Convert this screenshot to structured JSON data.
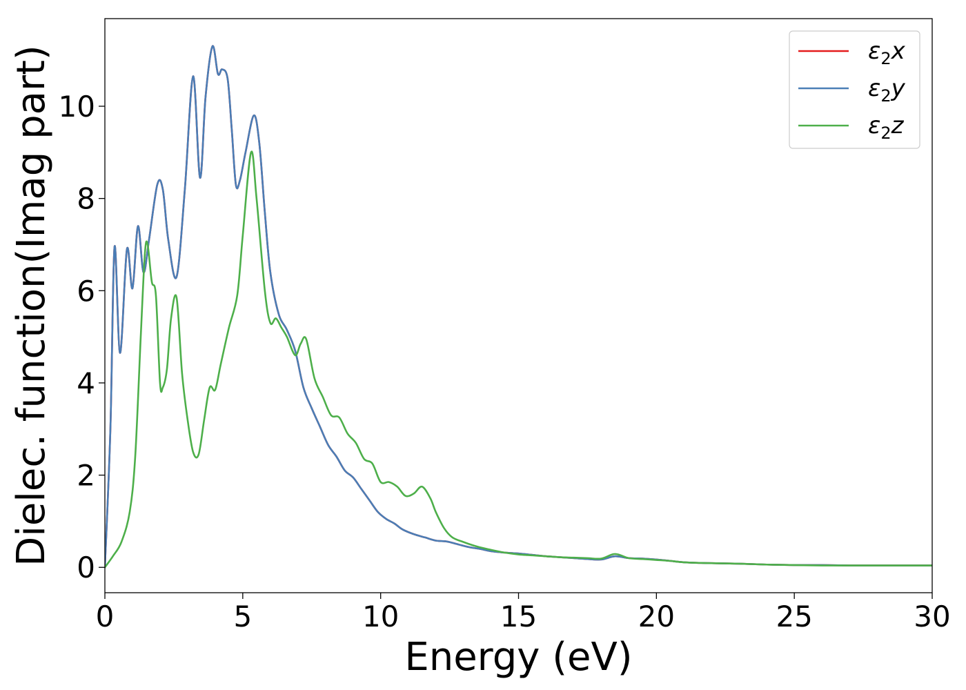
{
  "chart_data": {
    "type": "line",
    "title": "",
    "xlabel": "Energy (eV)",
    "ylabel": "Dielec. function(Imag part)",
    "xlim": [
      0,
      30
    ],
    "ylim": [
      -0.55,
      11.9
    ],
    "xticks": [
      0,
      5,
      10,
      15,
      20,
      25,
      30
    ],
    "yticks": [
      0,
      2,
      4,
      6,
      8,
      10
    ],
    "grid": false,
    "legend_position": "top-right",
    "series": [
      {
        "name": "ε₂x",
        "legend_base": "ε",
        "legend_sub": "2",
        "legend_var": "x",
        "color": "#e41a1c",
        "x": [
          0,
          0.2,
          0.35,
          0.55,
          0.8,
          1.0,
          1.2,
          1.4,
          1.6,
          1.9,
          2.1,
          2.3,
          2.6,
          2.9,
          3.2,
          3.45,
          3.65,
          3.9,
          4.1,
          4.25,
          4.45,
          4.6,
          4.75,
          4.9,
          5.1,
          5.4,
          5.6,
          5.8,
          6.0,
          6.3,
          6.6,
          6.9,
          7.2,
          7.5,
          7.8,
          8.1,
          8.4,
          8.7,
          9.0,
          9.3,
          9.6,
          9.9,
          10.2,
          10.5,
          10.8,
          11.2,
          11.6,
          12.0,
          12.4,
          12.8,
          13.2,
          13.6,
          14.0,
          14.5,
          15.0,
          15.5,
          16.0,
          16.5,
          17.0,
          17.5,
          18.0,
          18.5,
          19.0,
          19.5,
          20.0,
          20.5,
          21.0,
          22.0,
          23.0,
          24.0,
          25.0,
          26.0,
          27.0,
          28.0,
          29.0,
          30.0
        ],
        "values": [
          0,
          3.0,
          6.95,
          4.65,
          6.9,
          6.05,
          7.4,
          6.4,
          7.1,
          8.3,
          8.2,
          7.1,
          6.3,
          8.2,
          10.65,
          8.45,
          10.2,
          11.3,
          10.7,
          10.8,
          10.6,
          9.5,
          8.3,
          8.4,
          9.0,
          9.8,
          9.2,
          7.7,
          6.4,
          5.5,
          5.15,
          4.7,
          3.9,
          3.45,
          3.05,
          2.65,
          2.4,
          2.1,
          1.95,
          1.7,
          1.45,
          1.2,
          1.05,
          0.95,
          0.82,
          0.72,
          0.65,
          0.58,
          0.56,
          0.5,
          0.44,
          0.4,
          0.35,
          0.32,
          0.3,
          0.27,
          0.24,
          0.22,
          0.2,
          0.18,
          0.17,
          0.24,
          0.2,
          0.19,
          0.17,
          0.14,
          0.11,
          0.09,
          0.08,
          0.06,
          0.05,
          0.05,
          0.04,
          0.04,
          0.04,
          0.04
        ]
      },
      {
        "name": "ε₂y",
        "legend_base": "ε",
        "legend_sub": "2",
        "legend_var": "y",
        "color": "#4a7eb6",
        "x": [
          0,
          0.2,
          0.35,
          0.55,
          0.8,
          1.0,
          1.2,
          1.4,
          1.6,
          1.9,
          2.1,
          2.3,
          2.6,
          2.9,
          3.2,
          3.45,
          3.65,
          3.9,
          4.1,
          4.25,
          4.45,
          4.6,
          4.75,
          4.9,
          5.1,
          5.4,
          5.6,
          5.8,
          6.0,
          6.3,
          6.6,
          6.9,
          7.2,
          7.5,
          7.8,
          8.1,
          8.4,
          8.7,
          9.0,
          9.3,
          9.6,
          9.9,
          10.2,
          10.5,
          10.8,
          11.2,
          11.6,
          12.0,
          12.4,
          12.8,
          13.2,
          13.6,
          14.0,
          14.5,
          15.0,
          15.5,
          16.0,
          16.5,
          17.0,
          17.5,
          18.0,
          18.5,
          19.0,
          19.5,
          20.0,
          20.5,
          21.0,
          22.0,
          23.0,
          24.0,
          25.0,
          26.0,
          27.0,
          28.0,
          29.0,
          30.0
        ],
        "values": [
          0,
          3.0,
          6.95,
          4.65,
          6.9,
          6.05,
          7.4,
          6.4,
          7.1,
          8.3,
          8.2,
          7.1,
          6.3,
          8.2,
          10.65,
          8.45,
          10.2,
          11.3,
          10.7,
          10.8,
          10.6,
          9.5,
          8.3,
          8.4,
          9.0,
          9.8,
          9.2,
          7.7,
          6.4,
          5.5,
          5.15,
          4.7,
          3.9,
          3.45,
          3.05,
          2.65,
          2.4,
          2.1,
          1.95,
          1.7,
          1.45,
          1.2,
          1.05,
          0.95,
          0.82,
          0.72,
          0.65,
          0.58,
          0.56,
          0.5,
          0.44,
          0.4,
          0.35,
          0.32,
          0.3,
          0.27,
          0.24,
          0.22,
          0.2,
          0.18,
          0.17,
          0.24,
          0.2,
          0.19,
          0.17,
          0.14,
          0.11,
          0.09,
          0.08,
          0.06,
          0.05,
          0.05,
          0.04,
          0.04,
          0.04,
          0.04
        ]
      },
      {
        "name": "ε₂z",
        "legend_base": "ε",
        "legend_sub": "2",
        "legend_var": "z",
        "color": "#4daf4a",
        "x": [
          0,
          0.3,
          0.6,
          0.9,
          1.1,
          1.3,
          1.45,
          1.55,
          1.7,
          1.85,
          2.0,
          2.1,
          2.25,
          2.4,
          2.6,
          2.8,
          3.0,
          3.2,
          3.4,
          3.6,
          3.8,
          4.0,
          4.2,
          4.5,
          4.8,
          5.0,
          5.3,
          5.5,
          5.8,
          6.0,
          6.2,
          6.4,
          6.6,
          6.9,
          7.1,
          7.3,
          7.6,
          7.9,
          8.2,
          8.5,
          8.8,
          9.1,
          9.4,
          9.7,
          10.0,
          10.3,
          10.6,
          10.9,
          11.2,
          11.5,
          11.8,
          12.0,
          12.3,
          12.6,
          13.0,
          13.5,
          14.0,
          14.5,
          15.0,
          15.5,
          16.0,
          16.5,
          17.0,
          17.5,
          18.0,
          18.5,
          19.0,
          19.5,
          20.0,
          20.5,
          21.0,
          22.0,
          23.0,
          24.0,
          25.0,
          26.0,
          27.0,
          28.0,
          29.0,
          30.0
        ],
        "values": [
          0,
          0.25,
          0.55,
          1.2,
          2.4,
          5.0,
          6.8,
          7.0,
          6.2,
          5.9,
          4.0,
          3.9,
          4.3,
          5.4,
          5.85,
          4.2,
          3.2,
          2.5,
          2.45,
          3.2,
          3.9,
          3.85,
          4.4,
          5.2,
          5.9,
          7.2,
          9.0,
          8.0,
          6.0,
          5.3,
          5.4,
          5.2,
          5.0,
          4.6,
          4.85,
          4.95,
          4.1,
          3.7,
          3.3,
          3.25,
          2.9,
          2.7,
          2.35,
          2.25,
          1.85,
          1.85,
          1.75,
          1.55,
          1.6,
          1.75,
          1.5,
          1.2,
          0.85,
          0.65,
          0.55,
          0.45,
          0.38,
          0.32,
          0.28,
          0.26,
          0.24,
          0.22,
          0.21,
          0.2,
          0.19,
          0.29,
          0.2,
          0.18,
          0.16,
          0.14,
          0.11,
          0.09,
          0.08,
          0.06,
          0.05,
          0.04,
          0.04,
          0.04,
          0.04,
          0.04
        ]
      }
    ]
  }
}
